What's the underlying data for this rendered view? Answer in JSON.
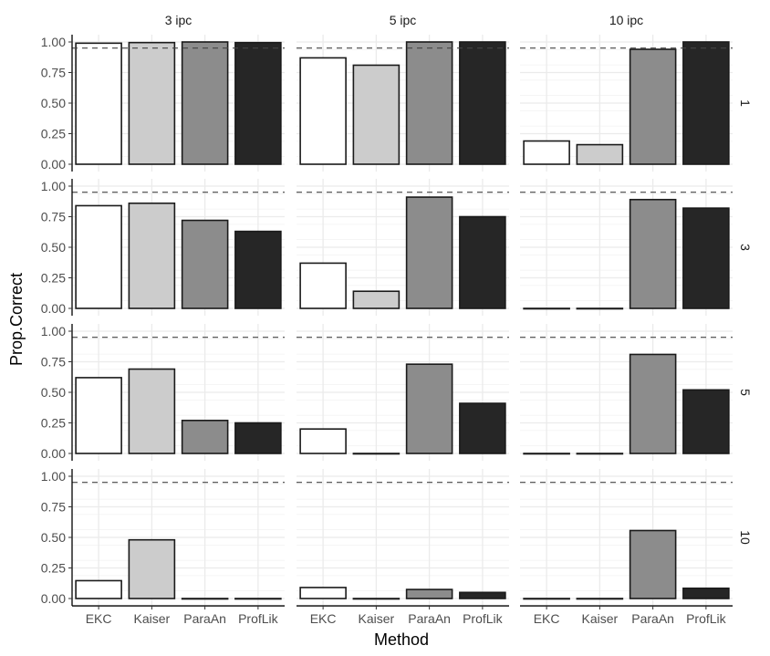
{
  "chart_data": {
    "type": "bar",
    "facet_columns": [
      "3 ipc",
      "5 ipc",
      "10 ipc"
    ],
    "facet_rows": [
      "1",
      "3",
      "5",
      "10"
    ],
    "categories": [
      "EKC",
      "Kaiser",
      "ParaAn",
      "ProfLik"
    ],
    "fills": {
      "EKC": "#ffffff",
      "Kaiser": "#cccccc",
      "ParaAn": "#8c8c8c",
      "ProfLik": "#262626"
    },
    "xlabel": "Method",
    "ylabel": "Prop.Correct",
    "ylim": [
      0,
      1
    ],
    "yticks": [
      "0.00",
      "0.25",
      "0.50",
      "0.75",
      "1.00"
    ],
    "reference_line": 0.95,
    "grid": true,
    "values": {
      "1": {
        "3 ipc": [
          0.99,
          0.995,
          1.0,
          0.995
        ],
        "5 ipc": [
          0.87,
          0.81,
          1.0,
          1.0
        ],
        "10 ipc": [
          0.19,
          0.16,
          0.94,
          1.0
        ]
      },
      "3": {
        "3 ipc": [
          0.84,
          0.86,
          0.72,
          0.63
        ],
        "5 ipc": [
          0.37,
          0.14,
          0.91,
          0.75
        ],
        "10 ipc": [
          0.0,
          0.0,
          0.89,
          0.82
        ]
      },
      "5": {
        "3 ipc": [
          0.62,
          0.69,
          0.27,
          0.25
        ],
        "5 ipc": [
          0.2,
          0.0,
          0.73,
          0.41
        ],
        "10 ipc": [
          0.0,
          0.0,
          0.81,
          0.52
        ]
      },
      "10": {
        "3 ipc": [
          0.146,
          0.48,
          0.0,
          0.0
        ],
        "5 ipc": [
          0.09,
          0.0,
          0.074,
          0.05
        ],
        "10 ipc": [
          0.0,
          0.0,
          0.556,
          0.084
        ]
      }
    }
  }
}
